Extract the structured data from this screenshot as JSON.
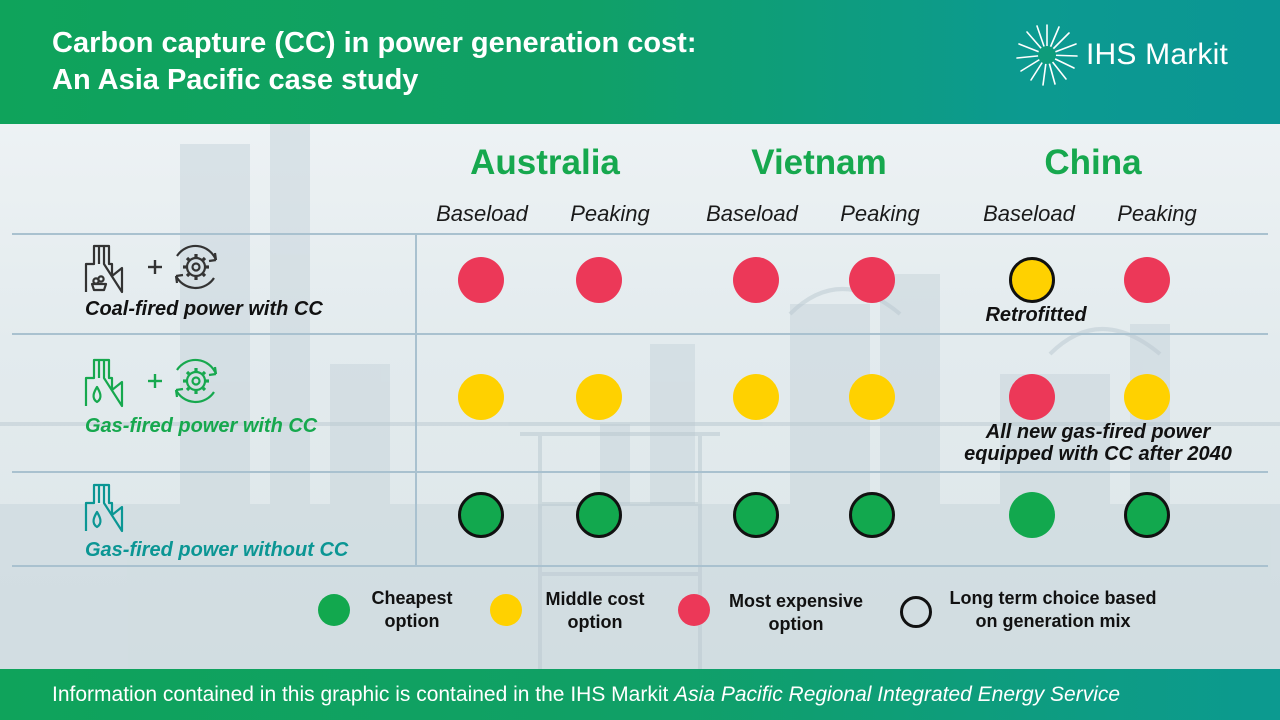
{
  "header": {
    "title_line1": "Carbon capture (CC) in power generation cost:",
    "title_line2": "An Asia Pacific case study",
    "logo_text": "IHS Markit",
    "logo_mark": "ray-burst-logo"
  },
  "countries": [
    {
      "name": "Australia",
      "columns": [
        "Baseload",
        "Peaking"
      ]
    },
    {
      "name": "Vietnam",
      "columns": [
        "Baseload",
        "Peaking"
      ]
    },
    {
      "name": "China",
      "columns": [
        "Baseload",
        "Peaking"
      ]
    }
  ],
  "rows": [
    {
      "label": "Coal-fired power with CC",
      "icons": [
        "coal-plant-icon",
        "plus-icon",
        "gear-cycle-icon"
      ],
      "label_color": "#111111",
      "cells": [
        {
          "color": "red",
          "long_term": false
        },
        {
          "color": "red",
          "long_term": false
        },
        {
          "color": "red",
          "long_term": false
        },
        {
          "color": "red",
          "long_term": false
        },
        {
          "color": "yellow",
          "long_term": true
        },
        {
          "color": "red",
          "long_term": false
        }
      ]
    },
    {
      "label": "Gas-fired power with CC",
      "icons": [
        "gas-plant-icon",
        "plus-icon",
        "gear-cycle-icon"
      ],
      "label_color": "#16a84e",
      "cells": [
        {
          "color": "yellow",
          "long_term": false
        },
        {
          "color": "yellow",
          "long_term": false
        },
        {
          "color": "yellow",
          "long_term": false
        },
        {
          "color": "yellow",
          "long_term": false
        },
        {
          "color": "red",
          "long_term": false
        },
        {
          "color": "yellow",
          "long_term": false
        }
      ]
    },
    {
      "label": "Gas-fired power without CC",
      "icons": [
        "gas-plant-icon"
      ],
      "label_color": "#0b9694",
      "cells": [
        {
          "color": "green",
          "long_term": true
        },
        {
          "color": "green",
          "long_term": true
        },
        {
          "color": "green",
          "long_term": true
        },
        {
          "color": "green",
          "long_term": true
        },
        {
          "color": "green",
          "long_term": false
        },
        {
          "color": "green",
          "long_term": true
        }
      ]
    }
  ],
  "notes": {
    "retrofitted": "Retrofitted",
    "gas_cc_line1": "All new gas-fired power",
    "gas_cc_line2": "equipped with CC after 2040"
  },
  "legend": [
    {
      "key": "green",
      "line1": "Cheapest",
      "line2": "option"
    },
    {
      "key": "yellow",
      "line1": "Middle cost",
      "line2": "option"
    },
    {
      "key": "red",
      "line1": "Most expensive",
      "line2": "option"
    },
    {
      "key": "ring",
      "line1": "Long term choice based",
      "line2": "on generation mix"
    }
  ],
  "colors": {
    "cheapest": "#12a84e",
    "middle": "#ffd100",
    "expensive": "#ec3858",
    "long_term_ring": "#111111",
    "country_heading": "#16a84e",
    "band_green": "#0fa35b",
    "band_teal": "#0b9694"
  },
  "footer": {
    "text_plain": "Information contained in this graphic is contained in the IHS Markit ",
    "text_italic": "Asia Pacific Regional Integrated Energy Service"
  }
}
